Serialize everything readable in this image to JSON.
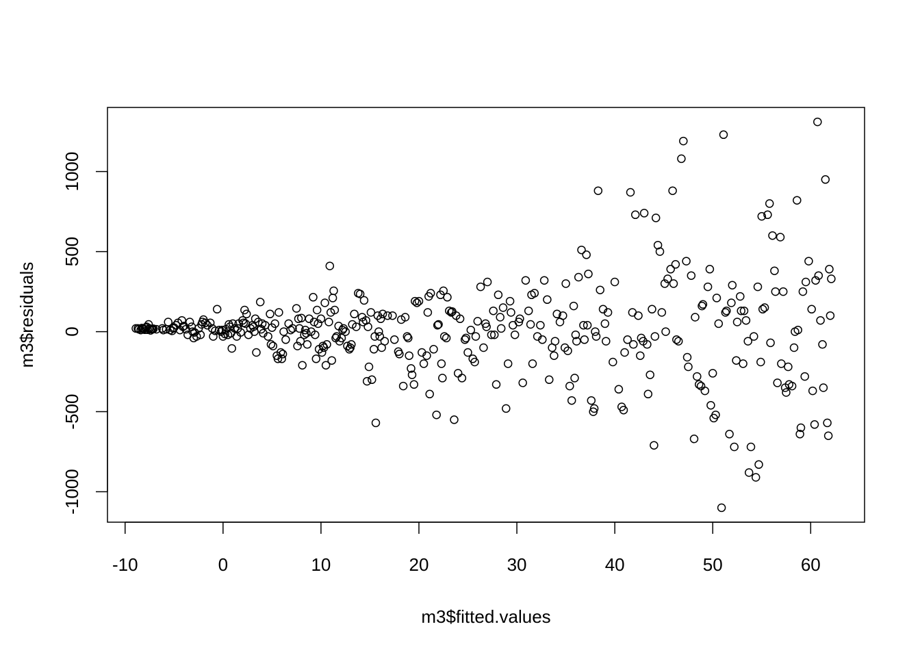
{
  "chart_data": {
    "type": "scatter",
    "title": "",
    "xlabel": "m3$fitted.values",
    "ylabel": "m3$residuals",
    "xlim": [
      -11.8,
      65.5
    ],
    "ylim": [
      -1190,
      1400
    ],
    "x_ticks": [
      -10,
      0,
      10,
      20,
      30,
      40,
      50,
      60
    ],
    "y_ticks": [
      -1000,
      -500,
      0,
      500,
      1000
    ],
    "x_tick_labels": [
      "-10",
      "0",
      "10",
      "20",
      "30",
      "40",
      "50",
      "60"
    ],
    "y_tick_labels": [
      "-1000",
      "-500",
      "0",
      "500",
      "1000"
    ],
    "grid": false,
    "marker": "open-circle",
    "points": [
      [
        -8.9,
        20
      ],
      [
        -8.6,
        15
      ],
      [
        -8.3,
        22
      ],
      [
        -8.1,
        18
      ],
      [
        -7.9,
        25
      ],
      [
        -7.7,
        12
      ],
      [
        -7.5,
        20
      ],
      [
        -7.3,
        16
      ],
      [
        -8.4,
        10
      ],
      [
        -7.8,
        30
      ],
      [
        -7.6,
        45
      ],
      [
        -7.1,
        18
      ],
      [
        -6.8,
        15
      ],
      [
        -8.7,
        20
      ],
      [
        -8.0,
        12
      ],
      [
        -7.4,
        8
      ],
      [
        -6.2,
        20
      ],
      [
        -5.8,
        15
      ],
      [
        -5.6,
        60
      ],
      [
        -5.4,
        10
      ],
      [
        -5.2,
        5
      ],
      [
        -5.0,
        25
      ],
      [
        -4.8,
        40
      ],
      [
        -4.6,
        55
      ],
      [
        -4.4,
        10
      ],
      [
        -4.2,
        70
      ],
      [
        -4.0,
        35
      ],
      [
        -3.8,
        15
      ],
      [
        -3.6,
        -20
      ],
      [
        -3.4,
        60
      ],
      [
        -3.2,
        30
      ],
      [
        -3.0,
        -40
      ],
      [
        -2.9,
        -5
      ],
      [
        -2.7,
        -30
      ],
      [
        -2.5,
        20
      ],
      [
        -2.3,
        -20
      ],
      [
        -2.2,
        45
      ],
      [
        -2.0,
        75
      ],
      [
        -1.8,
        55
      ],
      [
        -1.6,
        40
      ],
      [
        -1.3,
        55
      ],
      [
        -1.0,
        -30
      ],
      [
        -0.8,
        5
      ],
      [
        -0.6,
        140
      ],
      [
        -0.4,
        10
      ],
      [
        -0.2,
        0
      ],
      [
        0.0,
        -30
      ],
      [
        0.2,
        -15
      ],
      [
        0.3,
        15
      ],
      [
        0.5,
        -20
      ],
      [
        0.6,
        45
      ],
      [
        0.8,
        -10
      ],
      [
        0.9,
        -105
      ],
      [
        1.0,
        50
      ],
      [
        1.2,
        20
      ],
      [
        1.4,
        -30
      ],
      [
        1.6,
        50
      ],
      [
        1.8,
        -5
      ],
      [
        2.0,
        70
      ],
      [
        2.1,
        55
      ],
      [
        2.2,
        135
      ],
      [
        2.4,
        110
      ],
      [
        2.6,
        -20
      ],
      [
        2.8,
        20
      ],
      [
        3.0,
        40
      ],
      [
        3.2,
        0
      ],
      [
        3.3,
        80
      ],
      [
        3.4,
        -130
      ],
      [
        3.6,
        60
      ],
      [
        3.8,
        185
      ],
      [
        3.9,
        15
      ],
      [
        4.1,
        -10
      ],
      [
        4.3,
        40
      ],
      [
        4.6,
        -30
      ],
      [
        4.8,
        110
      ],
      [
        5.0,
        25
      ],
      [
        5.1,
        -90
      ],
      [
        5.3,
        50
      ],
      [
        5.5,
        -150
      ],
      [
        5.6,
        -170
      ],
      [
        5.7,
        120
      ],
      [
        5.9,
        -130
      ],
      [
        6.1,
        -140
      ],
      [
        6.2,
        0
      ],
      [
        6.4,
        -50
      ],
      [
        6.7,
        50
      ],
      [
        7.1,
        20
      ],
      [
        7.5,
        145
      ],
      [
        7.6,
        -90
      ],
      [
        7.8,
        20
      ],
      [
        7.9,
        -60
      ],
      [
        8.0,
        85
      ],
      [
        8.1,
        -210
      ],
      [
        8.3,
        -20
      ],
      [
        8.4,
        10
      ],
      [
        8.6,
        -80
      ],
      [
        8.8,
        80
      ],
      [
        9.0,
        0
      ],
      [
        9.2,
        215
      ],
      [
        9.4,
        -20
      ],
      [
        9.5,
        -170
      ],
      [
        9.6,
        135
      ],
      [
        9.7,
        50
      ],
      [
        9.8,
        -110
      ],
      [
        10.0,
        80
      ],
      [
        10.1,
        -130
      ],
      [
        10.2,
        -90
      ],
      [
        10.4,
        180
      ],
      [
        10.5,
        -210
      ],
      [
        10.6,
        -80
      ],
      [
        10.8,
        60
      ],
      [
        10.9,
        410
      ],
      [
        11.0,
        120
      ],
      [
        11.1,
        -180
      ],
      [
        11.2,
        210
      ],
      [
        11.3,
        255
      ],
      [
        11.4,
        135
      ],
      [
        11.6,
        -30
      ],
      [
        11.8,
        35
      ],
      [
        11.9,
        -60
      ],
      [
        12.1,
        -40
      ],
      [
        12.3,
        20
      ],
      [
        12.5,
        0
      ],
      [
        12.7,
        -90
      ],
      [
        12.9,
        -110
      ],
      [
        13.1,
        -80
      ],
      [
        13.2,
        45
      ],
      [
        13.4,
        110
      ],
      [
        13.6,
        30
      ],
      [
        13.8,
        240
      ],
      [
        14.0,
        235
      ],
      [
        14.2,
        90
      ],
      [
        14.4,
        195
      ],
      [
        14.6,
        70
      ],
      [
        14.7,
        -310
      ],
      [
        14.8,
        30
      ],
      [
        14.9,
        -220
      ],
      [
        15.1,
        120
      ],
      [
        15.2,
        -300
      ],
      [
        15.4,
        -110
      ],
      [
        15.6,
        -570
      ],
      [
        15.8,
        100
      ],
      [
        15.9,
        0
      ],
      [
        16.0,
        -30
      ],
      [
        16.1,
        80
      ],
      [
        16.3,
        110
      ],
      [
        16.5,
        -60
      ],
      [
        16.8,
        100
      ],
      [
        17.5,
        -50
      ],
      [
        17.9,
        -125
      ],
      [
        18.0,
        -140
      ],
      [
        18.2,
        75
      ],
      [
        18.4,
        -340
      ],
      [
        18.6,
        90
      ],
      [
        18.8,
        -30
      ],
      [
        19.0,
        -150
      ],
      [
        19.2,
        -230
      ],
      [
        19.3,
        -270
      ],
      [
        19.5,
        -330
      ],
      [
        19.6,
        190
      ],
      [
        20.0,
        190
      ],
      [
        20.3,
        -130
      ],
      [
        20.5,
        -200
      ],
      [
        20.8,
        -150
      ],
      [
        21.0,
        220
      ],
      [
        21.1,
        -390
      ],
      [
        21.2,
        240
      ],
      [
        21.5,
        -110
      ],
      [
        21.8,
        -520
      ],
      [
        22.0,
        45
      ],
      [
        22.2,
        230
      ],
      [
        22.3,
        -200
      ],
      [
        22.4,
        -290
      ],
      [
        22.5,
        255
      ],
      [
        22.6,
        -30
      ],
      [
        22.9,
        215
      ],
      [
        23.1,
        130
      ],
      [
        23.3,
        120
      ],
      [
        23.4,
        125
      ],
      [
        23.6,
        -550
      ],
      [
        24.0,
        -260
      ],
      [
        24.2,
        80
      ],
      [
        24.4,
        -290
      ],
      [
        24.8,
        -40
      ],
      [
        25.0,
        -130
      ],
      [
        25.3,
        10
      ],
      [
        25.5,
        -170
      ],
      [
        25.7,
        -190
      ],
      [
        26.0,
        65
      ],
      [
        26.3,
        280
      ],
      [
        26.6,
        -100
      ],
      [
        26.8,
        50
      ],
      [
        27.0,
        310
      ],
      [
        27.4,
        -20
      ],
      [
        27.6,
        130
      ],
      [
        27.9,
        -330
      ],
      [
        28.1,
        230
      ],
      [
        28.3,
        90
      ],
      [
        28.6,
        150
      ],
      [
        28.9,
        -480
      ],
      [
        29.1,
        -200
      ],
      [
        29.3,
        190
      ],
      [
        29.6,
        40
      ],
      [
        29.8,
        -20
      ],
      [
        30.2,
        60
      ],
      [
        30.6,
        -320
      ],
      [
        30.9,
        320
      ],
      [
        31.2,
        130
      ],
      [
        31.4,
        45
      ],
      [
        31.6,
        -200
      ],
      [
        31.8,
        240
      ],
      [
        32.1,
        -30
      ],
      [
        32.4,
        40
      ],
      [
        32.8,
        320
      ],
      [
        33.1,
        200
      ],
      [
        33.3,
        -300
      ],
      [
        33.6,
        -100
      ],
      [
        33.8,
        -150
      ],
      [
        34.1,
        110
      ],
      [
        34.4,
        60
      ],
      [
        34.7,
        100
      ],
      [
        35.0,
        300
      ],
      [
        35.2,
        -120
      ],
      [
        35.4,
        -340
      ],
      [
        35.6,
        -430
      ],
      [
        35.8,
        160
      ],
      [
        36.1,
        -60
      ],
      [
        36.3,
        340
      ],
      [
        36.6,
        510
      ],
      [
        36.8,
        40
      ],
      [
        37.1,
        480
      ],
      [
        37.3,
        360
      ],
      [
        37.6,
        -430
      ],
      [
        37.9,
        -480
      ],
      [
        38.1,
        -30
      ],
      [
        38.3,
        880
      ],
      [
        38.5,
        260
      ],
      [
        38.8,
        140
      ],
      [
        39.3,
        120
      ],
      [
        39.8,
        -190
      ],
      [
        40.0,
        310
      ],
      [
        40.4,
        -360
      ],
      [
        40.7,
        -470
      ],
      [
        41.0,
        -130
      ],
      [
        41.3,
        -50
      ],
      [
        41.6,
        870
      ],
      [
        41.9,
        -80
      ],
      [
        42.1,
        730
      ],
      [
        42.4,
        100
      ],
      [
        42.7,
        -40
      ],
      [
        43.0,
        740
      ],
      [
        43.3,
        -80
      ],
      [
        43.6,
        -270
      ],
      [
        43.8,
        140
      ],
      [
        44.0,
        -710
      ],
      [
        44.2,
        710
      ],
      [
        44.4,
        540
      ],
      [
        44.6,
        500
      ],
      [
        44.8,
        120
      ],
      [
        45.1,
        300
      ],
      [
        45.4,
        330
      ],
      [
        45.7,
        390
      ],
      [
        45.9,
        880
      ],
      [
        46.2,
        420
      ],
      [
        46.5,
        -60
      ],
      [
        46.8,
        1080
      ],
      [
        47.0,
        1190
      ],
      [
        47.3,
        440
      ],
      [
        47.5,
        -220
      ],
      [
        47.8,
        350
      ],
      [
        48.1,
        -670
      ],
      [
        48.4,
        -280
      ],
      [
        48.6,
        -330
      ],
      [
        48.9,
        160
      ],
      [
        49.2,
        -370
      ],
      [
        49.5,
        280
      ],
      [
        49.8,
        -460
      ],
      [
        50.1,
        -540
      ],
      [
        50.3,
        -520
      ],
      [
        50.6,
        50
      ],
      [
        50.9,
        -1100
      ],
      [
        51.1,
        1230
      ],
      [
        51.4,
        130
      ],
      [
        51.7,
        -640
      ],
      [
        52.0,
        290
      ],
      [
        52.2,
        -720
      ],
      [
        52.5,
        60
      ],
      [
        52.8,
        220
      ],
      [
        53.1,
        -200
      ],
      [
        53.4,
        70
      ],
      [
        53.7,
        -880
      ],
      [
        53.9,
        -720
      ],
      [
        54.2,
        -30
      ],
      [
        54.4,
        -910
      ],
      [
        54.7,
        -830
      ],
      [
        55.0,
        720
      ],
      [
        55.3,
        150
      ],
      [
        55.6,
        730
      ],
      [
        55.8,
        800
      ],
      [
        56.1,
        600
      ],
      [
        56.3,
        380
      ],
      [
        56.6,
        -320
      ],
      [
        56.9,
        590
      ],
      [
        57.2,
        250
      ],
      [
        57.5,
        -380
      ],
      [
        57.8,
        -330
      ],
      [
        58.1,
        -340
      ],
      [
        58.3,
        -100
      ],
      [
        58.6,
        820
      ],
      [
        58.9,
        -640
      ],
      [
        59.2,
        250
      ],
      [
        59.5,
        310
      ],
      [
        59.8,
        440
      ],
      [
        60.1,
        140
      ],
      [
        60.4,
        -580
      ],
      [
        60.7,
        1310
      ],
      [
        61.0,
        70
      ],
      [
        61.2,
        -80
      ],
      [
        61.5,
        950
      ],
      [
        61.7,
        -570
      ],
      [
        61.9,
        390
      ],
      [
        62.1,
        330
      ],
      [
        47.4,
        -160
      ],
      [
        48.2,
        90
      ],
      [
        49.7,
        390
      ],
      [
        51.9,
        180
      ],
      [
        53.2,
        130
      ],
      [
        54.6,
        280
      ],
      [
        55.9,
        -70
      ],
      [
        57.0,
        -200
      ],
      [
        58.4,
        0
      ],
      [
        59.0,
        -600
      ],
      [
        60.5,
        320
      ],
      [
        61.8,
        -650
      ],
      [
        46.3,
        -50
      ],
      [
        49.0,
        170
      ],
      [
        50.4,
        210
      ],
      [
        52.4,
        -180
      ],
      [
        53.6,
        -60
      ],
      [
        54.9,
        -190
      ],
      [
        56.4,
        250
      ],
      [
        57.7,
        -220
      ],
      [
        59.4,
        -280
      ],
      [
        60.8,
        350
      ],
      [
        62.0,
        100
      ],
      [
        45.2,
        0
      ],
      [
        43.4,
        -390
      ],
      [
        42.9,
        -60
      ],
      [
        41.8,
        120
      ],
      [
        40.9,
        -490
      ],
      [
        39.1,
        -60
      ],
      [
        37.8,
        -500
      ],
      [
        36.9,
        -50
      ],
      [
        35.9,
        -290
      ],
      [
        34.9,
        -100
      ],
      [
        33.9,
        -60
      ],
      [
        32.6,
        -50
      ],
      [
        31.5,
        230
      ],
      [
        30.3,
        80
      ],
      [
        29.4,
        120
      ],
      [
        28.4,
        20
      ],
      [
        27.7,
        -20
      ],
      [
        26.9,
        30
      ],
      [
        25.8,
        -30
      ],
      [
        24.7,
        -50
      ],
      [
        23.8,
        100
      ],
      [
        22.8,
        -40
      ],
      [
        21.9,
        40
      ],
      [
        20.9,
        120
      ],
      [
        19.8,
        180
      ],
      [
        18.9,
        -40
      ],
      [
        17.3,
        100
      ],
      [
        16.2,
        -100
      ],
      [
        15.5,
        -30
      ],
      [
        14.3,
        60
      ],
      [
        13.0,
        -100
      ],
      [
        12.2,
        10
      ],
      [
        11.5,
        -40
      ],
      [
        10.3,
        -100
      ],
      [
        9.3,
        60
      ],
      [
        8.5,
        -10
      ],
      [
        7.7,
        80
      ],
      [
        6.9,
        10
      ],
      [
        6.0,
        -170
      ],
      [
        4.9,
        -80
      ],
      [
        4.0,
        50
      ],
      [
        3.1,
        30
      ],
      [
        2.3,
        50
      ],
      [
        1.5,
        20
      ],
      [
        0.7,
        30
      ],
      [
        -0.1,
        10
      ],
      [
        -1.1,
        20
      ],
      [
        -2.1,
        60
      ],
      [
        -3.1,
        0
      ],
      [
        -4.1,
        30
      ],
      [
        -5.1,
        20
      ],
      [
        -6.1,
        10
      ],
      [
        -7.2,
        15
      ],
      [
        -8.2,
        18
      ],
      [
        37.2,
        40
      ],
      [
        38.0,
        0
      ],
      [
        39.0,
        50
      ],
      [
        36.0,
        -20
      ],
      [
        42.6,
        -150
      ],
      [
        44.1,
        -30
      ],
      [
        46.0,
        300
      ],
      [
        48.8,
        -340
      ],
      [
        50.0,
        -260
      ],
      [
        51.3,
        120
      ],
      [
        52.9,
        130
      ],
      [
        55.1,
        140
      ],
      [
        57.4,
        -350
      ],
      [
        58.7,
        10
      ],
      [
        61.3,
        -350
      ],
      [
        60.2,
        -370
      ]
    ]
  }
}
